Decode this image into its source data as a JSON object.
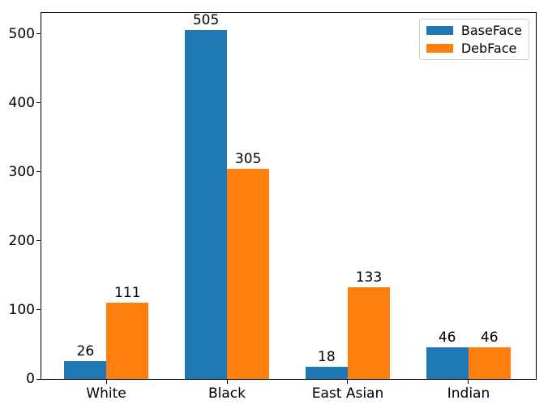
{
  "chart_data": {
    "type": "bar",
    "title": "",
    "xlabel": "",
    "ylabel": "",
    "categories": [
      "White",
      "Black",
      "East Asian",
      "Indian"
    ],
    "series": [
      {
        "name": "BaseFace",
        "color": "#1f77b4",
        "values": [
          26,
          505,
          18,
          46
        ]
      },
      {
        "name": "DebFace",
        "color": "#ff7f0e",
        "values": [
          111,
          305,
          133,
          46
        ]
      }
    ],
    "bar_value_labels": true,
    "yticks": [
      0,
      100,
      200,
      300,
      400,
      500
    ],
    "ylim": [
      0,
      530
    ],
    "xlim": [
      -0.54,
      3.56
    ],
    "bar_width": 0.35,
    "grid": false,
    "legend": {
      "position": "upper right",
      "entries": [
        "BaseFace",
        "DebFace"
      ]
    },
    "axis_color": "#000000",
    "background": "#ffffff"
  }
}
